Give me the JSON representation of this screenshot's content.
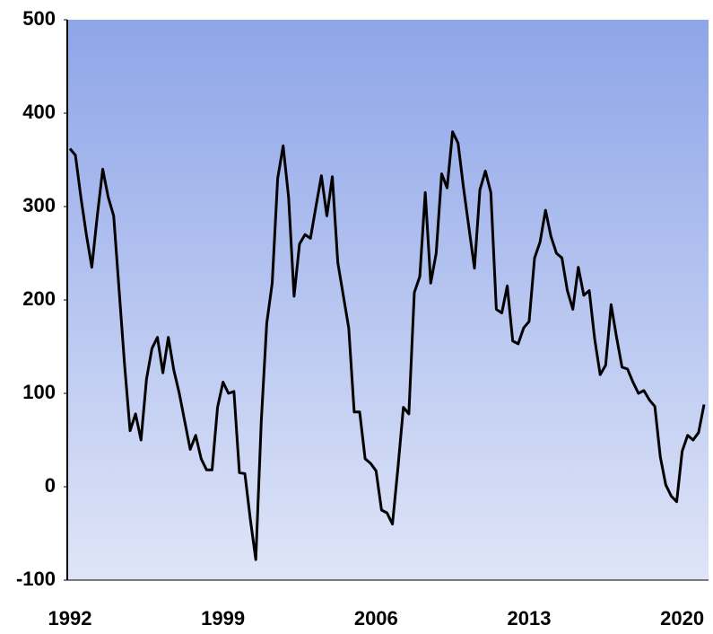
{
  "chart_data": {
    "type": "line",
    "categories": [
      "1992",
      null,
      null,
      null,
      null,
      null,
      null,
      null,
      null,
      null,
      null,
      null,
      null,
      null,
      null,
      null,
      null,
      null,
      null,
      null,
      null,
      null,
      null,
      null,
      null,
      null,
      null,
      null,
      "1999",
      null,
      null,
      null,
      null,
      null,
      null,
      null,
      null,
      null,
      null,
      null,
      null,
      null,
      null,
      null,
      null,
      null,
      null,
      null,
      null,
      null,
      null,
      null,
      null,
      null,
      null,
      null,
      "2006",
      null,
      null,
      null,
      null,
      null,
      null,
      null,
      null,
      null,
      null,
      null,
      null,
      null,
      null,
      null,
      null,
      null,
      null,
      null,
      null,
      null,
      null,
      null,
      null,
      null,
      null,
      null,
      "2013",
      null,
      null,
      null,
      null,
      null,
      null,
      null,
      null,
      null,
      null,
      null,
      null,
      null,
      null,
      null,
      null,
      null,
      null,
      null,
      null,
      null,
      null,
      null,
      null,
      null,
      null,
      null,
      "2020",
      null,
      null,
      null,
      null
    ],
    "series": [
      {
        "color": "#000000",
        "values": [
          362,
          355,
          310,
          270,
          235,
          290,
          340,
          310,
          290,
          210,
          130,
          60,
          78,
          50,
          115,
          148,
          160,
          122,
          160,
          125,
          100,
          70,
          40,
          55,
          30,
          18,
          18,
          85,
          112,
          100,
          102,
          15,
          14,
          -35,
          -78,
          70,
          175,
          218,
          330,
          365,
          310,
          204,
          260,
          270,
          266,
          300,
          333,
          290,
          332,
          240,
          205,
          170,
          80,
          80,
          30,
          25,
          17,
          -25,
          -28,
          -40,
          20,
          85,
          78,
          208,
          225,
          315,
          218,
          250,
          335,
          320,
          380,
          368,
          320,
          277,
          234,
          318,
          338,
          315,
          190,
          186,
          215,
          156,
          153,
          170,
          177,
          245,
          262,
          296,
          268,
          250,
          245,
          210,
          190,
          235,
          205,
          210,
          158,
          120,
          130,
          195,
          160,
          128,
          126,
          112,
          100,
          103,
          93,
          86,
          32,
          2,
          -10,
          -16,
          38,
          55,
          50,
          58,
          88
        ]
      }
    ],
    "ylim": [
      -100,
      500
    ],
    "yticks": [
      -100,
      0,
      100,
      200,
      300,
      400,
      500
    ]
  }
}
